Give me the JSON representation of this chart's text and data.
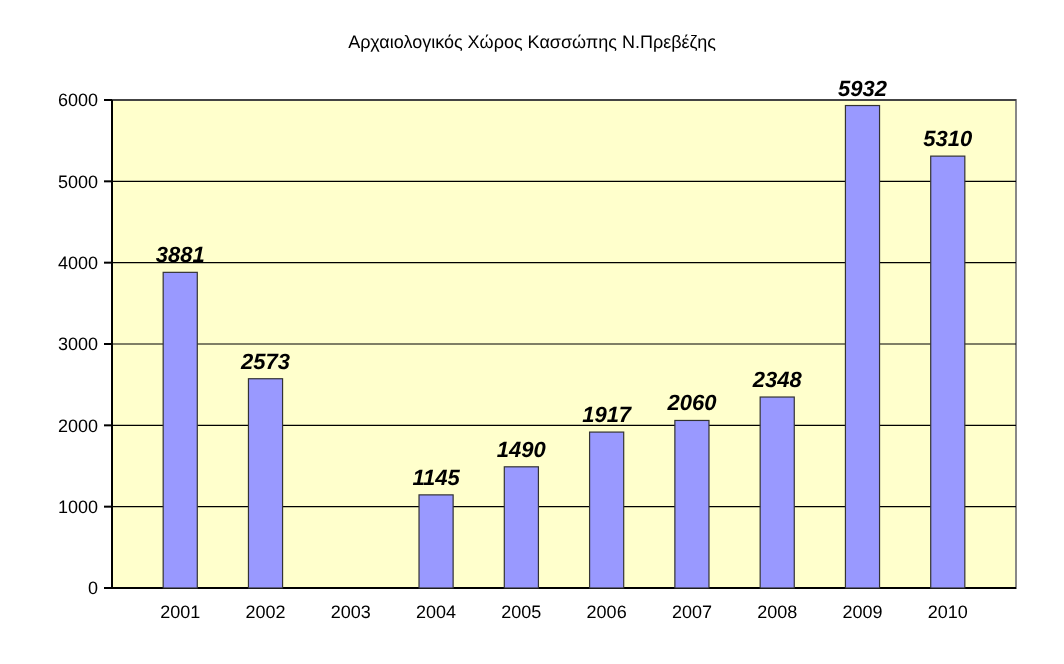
{
  "chart_data": {
    "type": "bar",
    "title": "Αρχαιολογικός Χώρος Κασσώπης Ν.Πρεβέζης",
    "categories": [
      "2001",
      "2002",
      "2003",
      "2004",
      "2005",
      "2006",
      "2007",
      "2008",
      "2009",
      "2010"
    ],
    "values": [
      3881,
      2573,
      null,
      1145,
      1490,
      1917,
      2060,
      2348,
      5932,
      5310
    ],
    "color": "#9999ff",
    "ylim": [
      0,
      6000
    ],
    "yticks": [
      0,
      1000,
      2000,
      3000,
      4000,
      5000,
      6000
    ],
    "grid": "y",
    "data_labels": true
  }
}
